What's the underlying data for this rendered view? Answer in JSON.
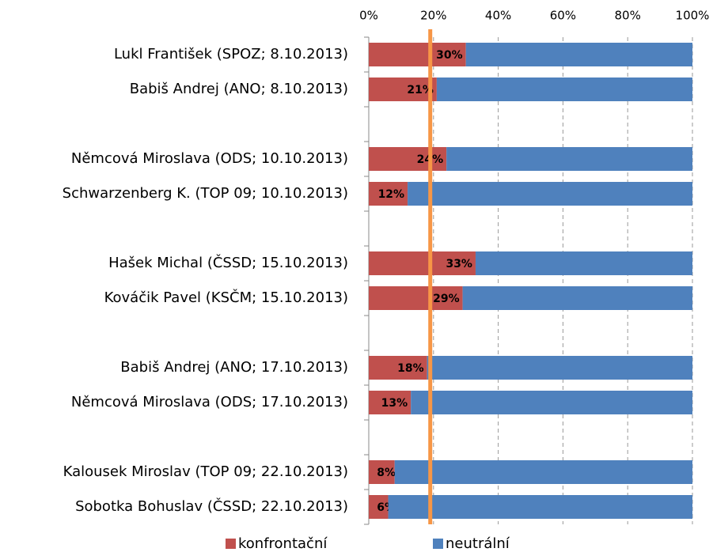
{
  "chart_data": {
    "type": "stacked_barh",
    "categories": [
      "Lukl František (SPOZ; 8.10.2013)",
      "Babiš Andrej (ANO; 8.10.2013)",
      null,
      "Němcová Miroslava (ODS; 10.10.2013)",
      "Schwarzenberg K. (TOP 09; 10.10.2013)",
      null,
      "Hašek Michal (ČSSD; 15.10.2013)",
      "Kováčik Pavel (KSČM; 15.10.2013)",
      null,
      "Babiš Andrej (ANO; 17.10.2013)",
      "Němcová Miroslava (ODS; 17.10.2013)",
      null,
      "Kalousek Miroslav (TOP 09; 22.10.2013)",
      "Sobotka Bohuslav (ČSSD; 22.10.2013)"
    ],
    "series": [
      {
        "name": "konfrontační",
        "color": "#c0504d",
        "values": [
          30,
          21,
          null,
          24,
          12,
          null,
          33,
          29,
          null,
          18,
          13,
          null,
          8,
          6
        ],
        "value_labels": [
          "30%",
          "21%",
          null,
          "24%",
          "12%",
          null,
          "33%",
          "29%",
          null,
          "18%",
          "13%",
          null,
          "8%",
          "6%"
        ]
      },
      {
        "name": "neutrální",
        "color": "#4f81bd",
        "values": [
          70,
          79,
          null,
          76,
          88,
          null,
          67,
          71,
          null,
          82,
          87,
          null,
          92,
          94
        ]
      }
    ],
    "xlim": [
      0,
      100
    ],
    "xticks": [
      {
        "value": 0,
        "label": "0%"
      },
      {
        "value": 20,
        "label": "20%"
      },
      {
        "value": 40,
        "label": "40%"
      },
      {
        "value": 60,
        "label": "60%"
      },
      {
        "value": 80,
        "label": "80%"
      },
      {
        "value": 100,
        "label": "100%"
      }
    ],
    "grid": true,
    "reference_line": {
      "value": 19,
      "color": "#f79646"
    },
    "legend": "bottom"
  }
}
